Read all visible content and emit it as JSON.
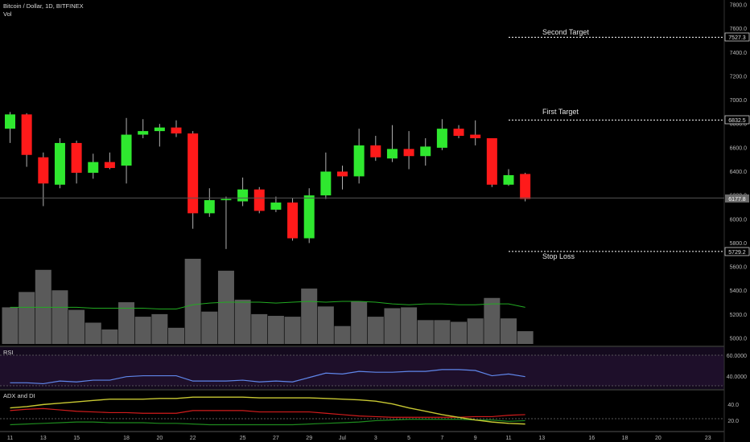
{
  "header": {
    "title": "Bitcoin / Dollar, 1D, BITFINEX",
    "vol_label": "Vol"
  },
  "colors": {
    "bg": "#000000",
    "up": "#2fe82f",
    "down": "#ff1a1a",
    "volume": "#5a5a5a",
    "vol_ma": "#22aa22",
    "rsi": "#5f86ea",
    "rsi_bg": "#1a0d24",
    "adx": "#c8c832",
    "di_plus": "#1e8a1e",
    "di_minus": "#d21c1c",
    "axis_text": "#b8b8b8"
  },
  "annotations": {
    "second_target": {
      "label": "Second Target",
      "price_tag": "7527.3"
    },
    "first_target": {
      "label": "First Target",
      "price_tag": "6832.5"
    },
    "stop_loss": {
      "label": "Stop Loss",
      "price_tag": "5729.2"
    },
    "last_price_tag": "6177.8"
  },
  "rsi_panel": {
    "label": "RSI",
    "ticks": [
      "60.0000",
      "40.0000"
    ]
  },
  "adx_panel": {
    "label": "ADX and DI",
    "ticks": [
      "40.0",
      "20.0"
    ]
  },
  "chart_data": {
    "type": "candlestick",
    "price_axis_ticks": [
      7800,
      7600,
      7400,
      7200,
      7000,
      6800,
      6600,
      6400,
      6200,
      6000,
      5800,
      5600,
      5400,
      5200,
      5000
    ],
    "price_axis_labels": [
      "7800.0",
      "7600.0",
      "7400.0",
      "7200.0",
      "7000.0",
      "6800.0",
      "6600.0",
      "6400.0",
      "6200.0",
      "6000.0",
      "5800.0",
      "5600.0",
      "5400.0",
      "5200.0",
      "5000.0"
    ],
    "ylim": [
      4960,
      7860
    ],
    "x_ticks": [
      {
        "label": "11",
        "index": 0
      },
      {
        "label": "13",
        "index": 2
      },
      {
        "label": "15",
        "index": 4
      },
      {
        "label": "18",
        "index": 7
      },
      {
        "label": "20",
        "index": 9
      },
      {
        "label": "22",
        "index": 11
      },
      {
        "label": "25",
        "index": 14
      },
      {
        "label": "27",
        "index": 16
      },
      {
        "label": "29",
        "index": 18
      },
      {
        "label": "Jul",
        "index": 20
      },
      {
        "label": "3",
        "index": 22
      },
      {
        "label": "5",
        "index": 24
      },
      {
        "label": "7",
        "index": 26
      },
      {
        "label": "9",
        "index": 28
      },
      {
        "label": "11",
        "index": 30
      },
      {
        "label": "13",
        "index": 32
      },
      {
        "label": "16",
        "index": 35
      },
      {
        "label": "18",
        "index": 37
      },
      {
        "label": "20",
        "index": 39
      },
      {
        "label": "23",
        "index": 42
      }
    ],
    "candles": [
      {
        "o": 6760,
        "h": 6900,
        "l": 6640,
        "c": 6880
      },
      {
        "o": 6880,
        "h": 6890,
        "l": 6440,
        "c": 6540
      },
      {
        "o": 6520,
        "h": 6560,
        "l": 6110,
        "c": 6300
      },
      {
        "o": 6290,
        "h": 6680,
        "l": 6260,
        "c": 6640
      },
      {
        "o": 6640,
        "h": 6660,
        "l": 6300,
        "c": 6390
      },
      {
        "o": 6390,
        "h": 6550,
        "l": 6340,
        "c": 6480
      },
      {
        "o": 6480,
        "h": 6560,
        "l": 6420,
        "c": 6430
      },
      {
        "o": 6450,
        "h": 6850,
        "l": 6300,
        "c": 6710
      },
      {
        "o": 6710,
        "h": 6840,
        "l": 6680,
        "c": 6740
      },
      {
        "o": 6740,
        "h": 6800,
        "l": 6610,
        "c": 6770
      },
      {
        "o": 6770,
        "h": 6830,
        "l": 6690,
        "c": 6720
      },
      {
        "o": 6720,
        "h": 6740,
        "l": 5920,
        "c": 6050
      },
      {
        "o": 6050,
        "h": 6260,
        "l": 6020,
        "c": 6160
      },
      {
        "o": 6160,
        "h": 6190,
        "l": 5750,
        "c": 6170
      },
      {
        "o": 6150,
        "h": 6350,
        "l": 6110,
        "c": 6250
      },
      {
        "o": 6250,
        "h": 6270,
        "l": 6050,
        "c": 6070
      },
      {
        "o": 6080,
        "h": 6190,
        "l": 6060,
        "c": 6140
      },
      {
        "o": 6140,
        "h": 6180,
        "l": 5820,
        "c": 5840
      },
      {
        "o": 5840,
        "h": 6260,
        "l": 5800,
        "c": 6200
      },
      {
        "o": 6200,
        "h": 6560,
        "l": 6170,
        "c": 6400
      },
      {
        "o": 6400,
        "h": 6450,
        "l": 6250,
        "c": 6360
      },
      {
        "o": 6360,
        "h": 6760,
        "l": 6300,
        "c": 6620
      },
      {
        "o": 6620,
        "h": 6700,
        "l": 6490,
        "c": 6520
      },
      {
        "o": 6510,
        "h": 6790,
        "l": 6480,
        "c": 6590
      },
      {
        "o": 6590,
        "h": 6740,
        "l": 6420,
        "c": 6530
      },
      {
        "o": 6530,
        "h": 6680,
        "l": 6450,
        "c": 6610
      },
      {
        "o": 6600,
        "h": 6840,
        "l": 6580,
        "c": 6760
      },
      {
        "o": 6760,
        "h": 6790,
        "l": 6680,
        "c": 6700
      },
      {
        "o": 6710,
        "h": 6830,
        "l": 6620,
        "c": 6680
      },
      {
        "o": 6680,
        "h": 6680,
        "l": 6270,
        "c": 6290
      },
      {
        "o": 6290,
        "h": 6420,
        "l": 6280,
        "c": 6370
      },
      {
        "o": 6380,
        "h": 6390,
        "l": 6150,
        "c": 6170
      }
    ],
    "volume_relative": [
      0.43,
      0.61,
      0.87,
      0.63,
      0.4,
      0.25,
      0.17,
      0.49,
      0.32,
      0.35,
      0.19,
      1.0,
      0.38,
      0.86,
      0.52,
      0.35,
      0.33,
      0.32,
      0.65,
      0.44,
      0.21,
      0.5,
      0.32,
      0.42,
      0.43,
      0.28,
      0.28,
      0.26,
      0.3,
      0.54,
      0.3,
      0.15
    ],
    "volume_ma_relative": [
      0.43,
      0.43,
      0.43,
      0.43,
      0.43,
      0.42,
      0.42,
      0.42,
      0.42,
      0.41,
      0.41,
      0.46,
      0.48,
      0.49,
      0.49,
      0.49,
      0.48,
      0.49,
      0.5,
      0.49,
      0.5,
      0.5,
      0.49,
      0.47,
      0.46,
      0.47,
      0.47,
      0.46,
      0.46,
      0.47,
      0.47,
      0.43
    ],
    "rsi": [
      33,
      33,
      32,
      35,
      34,
      36,
      36,
      40,
      41,
      41,
      41,
      35,
      35,
      35,
      36,
      34,
      35,
      34,
      39,
      44,
      43,
      46,
      45,
      45,
      46,
      46,
      48,
      48,
      47,
      41,
      43,
      40
    ],
    "rsi_scale": [
      26,
      68
    ],
    "adx": [
      34,
      36,
      39,
      41,
      43,
      45,
      47,
      47,
      47,
      48,
      48,
      50,
      50,
      50,
      50,
      49,
      49,
      49,
      49,
      48,
      47,
      46,
      44,
      40,
      34,
      29,
      24,
      20,
      16,
      13,
      11,
      10
    ],
    "di_plus": [
      9,
      10,
      11,
      12,
      13,
      13,
      12,
      12,
      12,
      11,
      11,
      10,
      9,
      9,
      9,
      9,
      9,
      9,
      10,
      11,
      12,
      13,
      15,
      16,
      17,
      17,
      17,
      17,
      16,
      16,
      14,
      15
    ],
    "di_minus": [
      30,
      32,
      33,
      31,
      29,
      28,
      27,
      27,
      26,
      26,
      26,
      30,
      30,
      30,
      30,
      28,
      28,
      28,
      28,
      26,
      24,
      22,
      21,
      20,
      20,
      20,
      20,
      20,
      21,
      21,
      23,
      24
    ],
    "di_scale": [
      0,
      55
    ]
  }
}
